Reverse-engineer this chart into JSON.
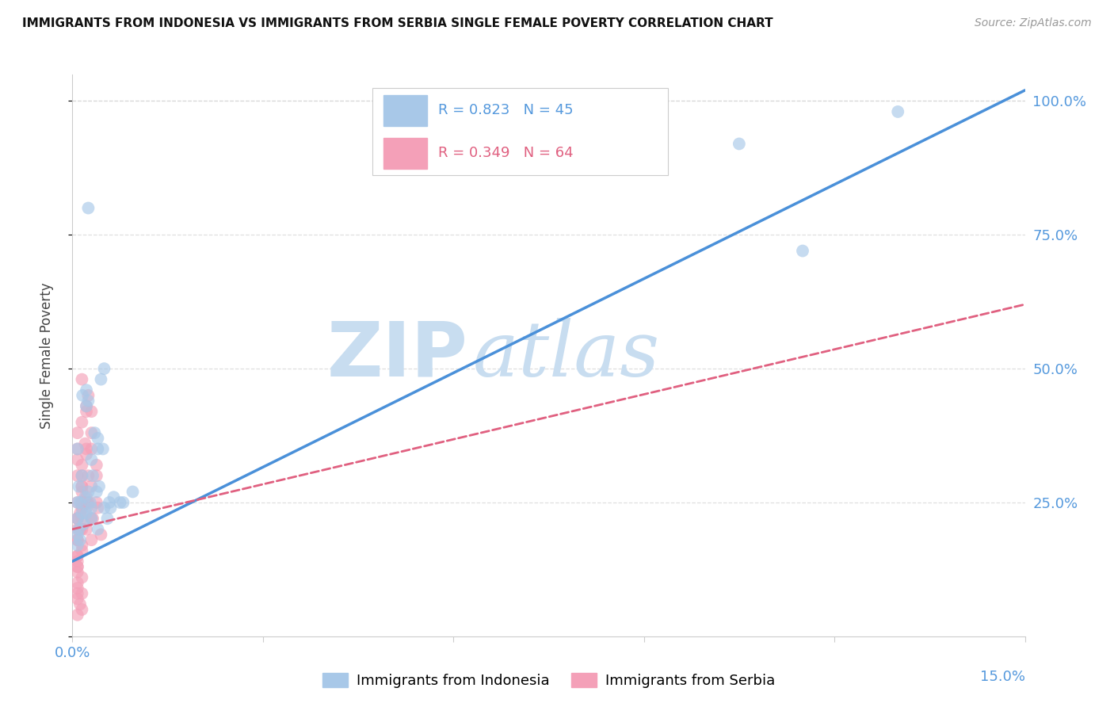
{
  "title": "IMMIGRANTS FROM INDONESIA VS IMMIGRANTS FROM SERBIA SINGLE FEMALE POVERTY CORRELATION CHART",
  "source": "Source: ZipAtlas.com",
  "ylabel": "Single Female Poverty",
  "legend_label_indonesia": "Immigrants from Indonesia",
  "legend_label_serbia": "Immigrants from Serbia",
  "R_indonesia": 0.823,
  "N_indonesia": 45,
  "R_serbia": 0.349,
  "N_serbia": 64,
  "xlim": [
    0.0,
    0.15
  ],
  "ylim": [
    0.0,
    1.05
  ],
  "xticks": [
    0.0,
    0.03,
    0.06,
    0.09,
    0.12,
    0.15
  ],
  "yticks": [
    0.0,
    0.25,
    0.5,
    0.75,
    1.0
  ],
  "color_indonesia": "#a8c8e8",
  "color_serbia": "#f4a0b8",
  "color_line_indonesia": "#4a90d9",
  "color_line_serbia": "#e06080",
  "color_axis_blue": "#5599dd",
  "watermark_zip_color": "#c8ddf0",
  "watermark_atlas_color": "#c8ddf0",
  "background_color": "#ffffff",
  "grid_color": "#d8d8d8",
  "indonesia_x": [
    0.0008,
    0.001,
    0.0012,
    0.0008,
    0.0015,
    0.0018,
    0.003,
    0.0008,
    0.001,
    0.0008,
    0.002,
    0.003,
    0.004,
    0.0015,
    0.0022,
    0.0008,
    0.0012,
    0.0025,
    0.003,
    0.004,
    0.0045,
    0.0022,
    0.0028,
    0.0038,
    0.005,
    0.0016,
    0.0025,
    0.0055,
    0.006,
    0.0035,
    0.004,
    0.0048,
    0.0032,
    0.0042,
    0.0025,
    0.005,
    0.0058,
    0.0065,
    0.008,
    0.0095,
    0.0022,
    0.0075,
    0.105,
    0.115,
    0.13
  ],
  "indonesia_y": [
    0.22,
    0.2,
    0.18,
    0.25,
    0.23,
    0.21,
    0.24,
    0.19,
    0.28,
    0.17,
    0.26,
    0.22,
    0.2,
    0.3,
    0.43,
    0.35,
    0.25,
    0.27,
    0.33,
    0.35,
    0.48,
    0.23,
    0.25,
    0.27,
    0.5,
    0.45,
    0.44,
    0.22,
    0.24,
    0.38,
    0.37,
    0.35,
    0.3,
    0.28,
    0.8,
    0.24,
    0.25,
    0.26,
    0.25,
    0.27,
    0.46,
    0.25,
    0.92,
    0.72,
    0.98
  ],
  "serbia_x": [
    0.0008,
    0.0008,
    0.0012,
    0.0008,
    0.0008,
    0.0015,
    0.0008,
    0.0008,
    0.0008,
    0.0012,
    0.0008,
    0.0008,
    0.0015,
    0.0008,
    0.0008,
    0.0015,
    0.002,
    0.0015,
    0.0022,
    0.0015,
    0.0008,
    0.0008,
    0.0015,
    0.0015,
    0.0022,
    0.0025,
    0.0015,
    0.0008,
    0.0008,
    0.0015,
    0.0008,
    0.0015,
    0.0008,
    0.0022,
    0.0015,
    0.0025,
    0.003,
    0.0022,
    0.003,
    0.0038,
    0.0015,
    0.0022,
    0.003,
    0.0038,
    0.0045,
    0.0032,
    0.004,
    0.0022,
    0.003,
    0.0025,
    0.0015,
    0.0008,
    0.0012,
    0.0015,
    0.0008,
    0.0008,
    0.0015,
    0.0008,
    0.0022,
    0.003,
    0.0022,
    0.003,
    0.0038,
    0.0015
  ],
  "serbia_y": [
    0.22,
    0.18,
    0.2,
    0.15,
    0.12,
    0.17,
    0.1,
    0.08,
    0.25,
    0.23,
    0.35,
    0.3,
    0.28,
    0.38,
    0.33,
    0.4,
    0.36,
    0.3,
    0.34,
    0.32,
    0.2,
    0.22,
    0.25,
    0.27,
    0.35,
    0.3,
    0.28,
    0.15,
    0.18,
    0.24,
    0.14,
    0.16,
    0.13,
    0.26,
    0.22,
    0.45,
    0.42,
    0.25,
    0.28,
    0.3,
    0.2,
    0.24,
    0.35,
    0.32,
    0.19,
    0.22,
    0.24,
    0.42,
    0.38,
    0.25,
    0.05,
    0.07,
    0.06,
    0.08,
    0.09,
    0.04,
    0.11,
    0.13,
    0.43,
    0.18,
    0.2,
    0.22,
    0.25,
    0.48
  ],
  "line_indonesia_x0": 0.0,
  "line_indonesia_y0": 0.14,
  "line_indonesia_x1": 0.15,
  "line_indonesia_y1": 1.02,
  "line_serbia_x0": 0.0,
  "line_serbia_y0": 0.2,
  "line_serbia_x1": 0.15,
  "line_serbia_y1": 0.62
}
